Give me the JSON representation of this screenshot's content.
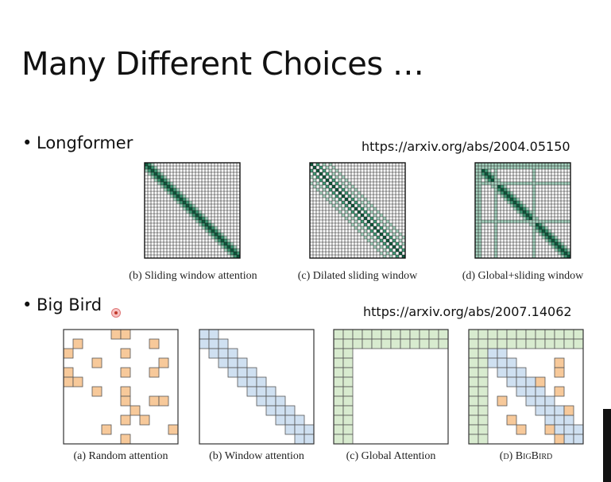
{
  "slide": {
    "title": "Many Different Choices …",
    "longformer": {
      "label": "Longformer",
      "url": "https://arxiv.org/abs/2004.05150",
      "captions": [
        "(b) Sliding window attention",
        "(c) Dilated sliding window",
        "(d) Global+sliding window"
      ]
    },
    "bigbird": {
      "label": "Big Bird",
      "url": "https://arxiv.org/abs/2007.14062",
      "captions": [
        "(a) Random attention",
        "(b) Window attention",
        "(c) Global Attention",
        "(d) BigBird"
      ]
    }
  },
  "colors": {
    "longformer_dark": "#0b5a3c",
    "longformer_mid": "#3f9a76",
    "longformer_light": "#a6d3bf",
    "random_orange": "#f7c99a",
    "window_blue": "#cfe0f1",
    "global_green": "#d8ebcf"
  }
}
